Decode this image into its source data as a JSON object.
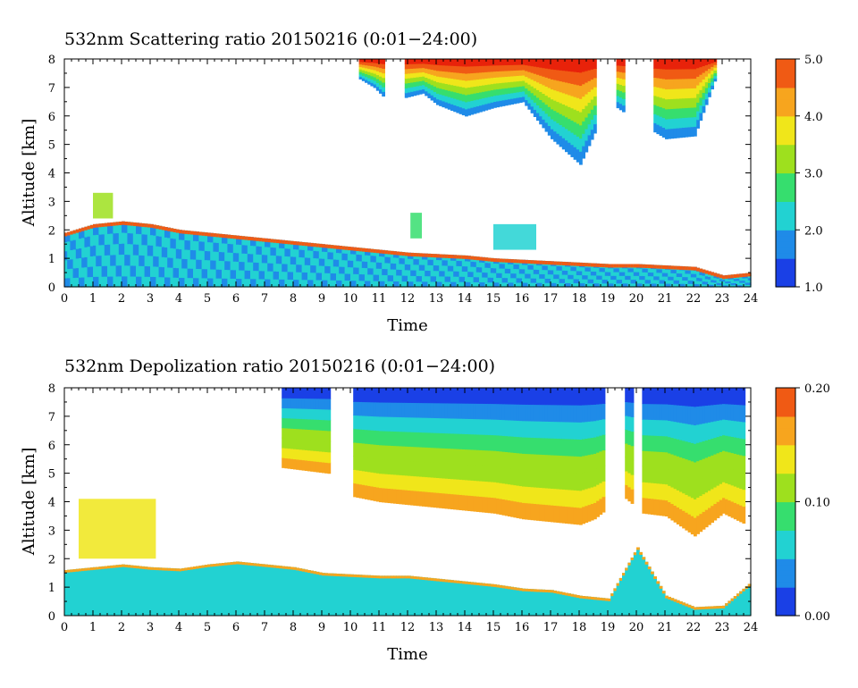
{
  "colors": {
    "colormap": [
      "#1a40e6",
      "#1f8be8",
      "#22d2d2",
      "#36de6e",
      "#9ee01e",
      "#f0e61a",
      "#f7a51e",
      "#f05a14",
      "#e8220a"
    ]
  },
  "chart_data": [
    {
      "type": "heatmap",
      "title": "532nm Scattering ratio  20150216 (0:01−24:00)",
      "xlabel": "Time",
      "ylabel": "Altitude [km]",
      "xlim": [
        0,
        24
      ],
      "ylim": [
        0,
        8
      ],
      "x_ticks": [
        "0",
        "1",
        "2",
        "3",
        "4",
        "5",
        "6",
        "7",
        "8",
        "9",
        "10",
        "11",
        "12",
        "13",
        "14",
        "15",
        "16",
        "17",
        "18",
        "19",
        "20",
        "21",
        "22",
        "23",
        "24"
      ],
      "y_ticks": [
        "0",
        "1",
        "2",
        "3",
        "4",
        "5",
        "6",
        "7",
        "8"
      ],
      "colorbar": {
        "min": 1.0,
        "max": 5.0,
        "ticks": [
          "1.0",
          "2.0",
          "3.0",
          "4.0",
          "5.0"
        ]
      },
      "features": [
        {
          "kind": "boundary_layer",
          "x": [
            0,
            1,
            2,
            3,
            4,
            5,
            6,
            7,
            8,
            9,
            10,
            11,
            12,
            13,
            14,
            15,
            16,
            17,
            18,
            19,
            20,
            21,
            22,
            23,
            24
          ],
          "top_km": [
            1.9,
            2.2,
            2.3,
            2.2,
            2.0,
            1.9,
            1.8,
            1.7,
            1.6,
            1.5,
            1.4,
            1.3,
            1.2,
            1.15,
            1.1,
            1.0,
            0.95,
            0.9,
            0.85,
            0.8,
            0.8,
            0.75,
            0.7,
            0.4,
            0.5
          ],
          "low_value": 1.8,
          "edge_value": 4.8
        },
        {
          "kind": "cloud",
          "x": [
            10.3,
            10.8,
            11.3,
            12.5,
            13,
            14,
            15,
            16,
            17,
            18,
            19,
            20,
            21,
            22,
            22.8
          ],
          "base_km": [
            7.3,
            7.0,
            6.5,
            6.8,
            6.4,
            6.0,
            6.3,
            6.5,
            5.2,
            4.3,
            6.5,
            5.8,
            5.2,
            5.3,
            7.5
          ],
          "value_top": 5.0,
          "value_base": 1.5,
          "gaps": [
            [
              11.1,
              11.8
            ],
            [
              18.6,
              19.3
            ],
            [
              19.6,
              20.6
            ]
          ]
        },
        {
          "kind": "aerosol_patch",
          "x": [
            1.0,
            1.7
          ],
          "y_km": [
            2.4,
            3.3
          ],
          "value": 3.0
        },
        {
          "kind": "aerosol_patch",
          "x": [
            12.1,
            12.5
          ],
          "y_km": [
            1.7,
            2.6
          ],
          "value": 2.5
        },
        {
          "kind": "aerosol_patch",
          "x": [
            15.0,
            16.5
          ],
          "y_km": [
            1.3,
            2.2
          ],
          "value": 2.2
        }
      ]
    },
    {
      "type": "heatmap",
      "title": "532nm Depolization ratio  20150216 (0:01−24:00)",
      "xlabel": "Time",
      "ylabel": "Altitude [km]",
      "xlim": [
        0,
        24
      ],
      "ylim": [
        0,
        8
      ],
      "x_ticks": [
        "0",
        "1",
        "2",
        "3",
        "4",
        "5",
        "6",
        "7",
        "8",
        "9",
        "10",
        "11",
        "12",
        "13",
        "14",
        "15",
        "16",
        "17",
        "18",
        "19",
        "20",
        "21",
        "22",
        "23",
        "24"
      ],
      "y_ticks": [
        "0",
        "1",
        "2",
        "3",
        "4",
        "5",
        "6",
        "7",
        "8"
      ],
      "colorbar": {
        "min": 0.0,
        "max": 0.2,
        "ticks": [
          "0.00",
          "0.10",
          "0.20"
        ]
      },
      "features": [
        {
          "kind": "boundary_layer",
          "x": [
            0,
            1,
            2,
            3,
            4,
            5,
            6,
            7,
            8,
            9,
            10,
            11,
            12,
            13,
            14,
            15,
            16,
            17,
            18,
            19,
            20,
            21,
            22,
            23,
            24
          ],
          "top_km": [
            1.6,
            1.7,
            1.8,
            1.7,
            1.65,
            1.8,
            1.9,
            1.8,
            1.7,
            1.5,
            1.45,
            1.4,
            1.4,
            1.3,
            1.2,
            1.1,
            0.95,
            0.9,
            0.7,
            0.6,
            2.4,
            0.7,
            0.3,
            0.35,
            1.2
          ],
          "value": 0.06
        },
        {
          "kind": "cloud",
          "x": [
            7.6,
            9.2,
            10.0,
            11.0,
            12.0,
            13.0,
            14.0,
            15.0,
            16.0,
            17.0,
            18.0,
            18.5,
            19.5,
            20.2,
            21.0,
            22.0,
            23.0,
            23.8
          ],
          "base_km": [
            5.2,
            5.0,
            4.2,
            4.0,
            3.9,
            3.8,
            3.7,
            3.6,
            3.4,
            3.3,
            3.2,
            3.4,
            4.2,
            3.6,
            3.5,
            2.8,
            3.6,
            3.2
          ],
          "value_top": 0.02,
          "value_base": 0.16,
          "gaps": [
            [
              9.2,
              10.0
            ],
            [
              18.9,
              19.6
            ],
            [
              19.9,
              20.2
            ]
          ]
        },
        {
          "kind": "aerosol_patch",
          "x": [
            0.5,
            3.2
          ],
          "y_km": [
            2.0,
            4.1
          ],
          "value": 0.14
        }
      ]
    }
  ]
}
